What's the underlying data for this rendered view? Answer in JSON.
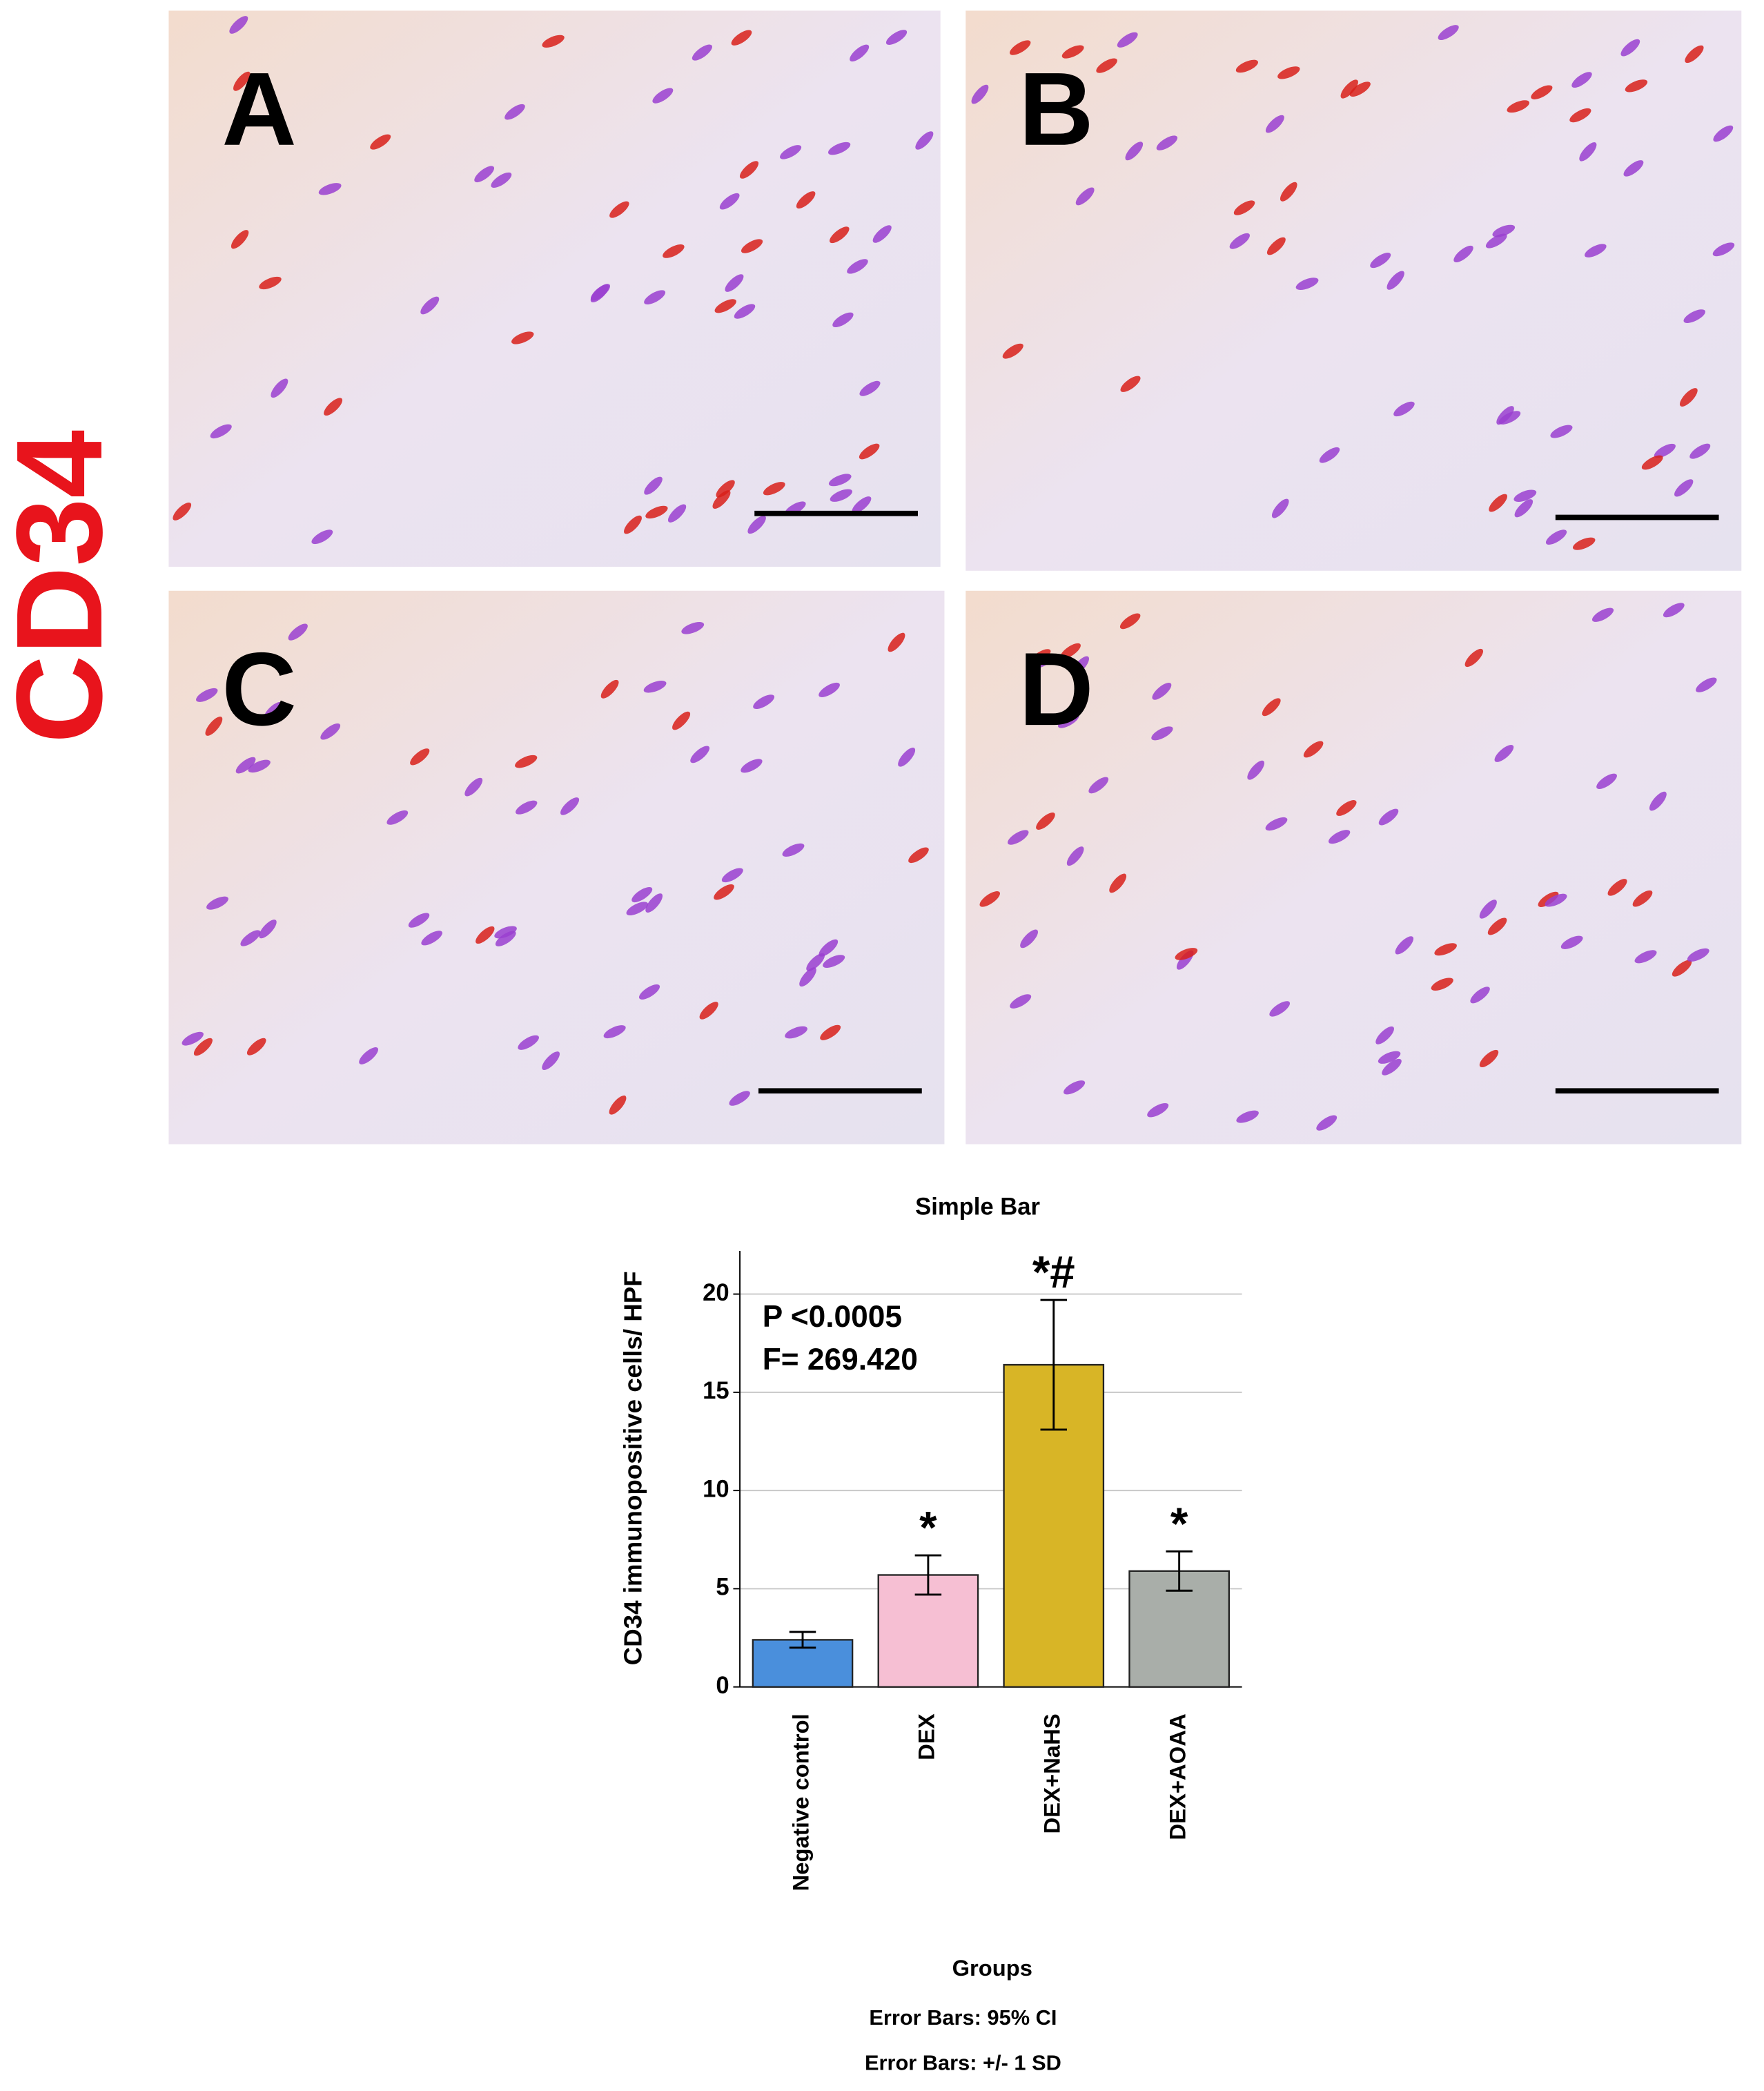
{
  "side_label": "CD34",
  "panels": [
    "A",
    "B",
    "C",
    "D"
  ],
  "chart_data": {
    "type": "bar",
    "title": "Simple Bar",
    "x_label": "Groups",
    "y_label": "CD34 immunopositive cells/ HPF",
    "categories": [
      "Negative control",
      "DEX",
      "DEX+NaHS",
      "DEX+AOAA"
    ],
    "values": [
      2.4,
      5.7,
      16.4,
      5.9
    ],
    "errors": [
      0.4,
      1.0,
      3.3,
      1.0
    ],
    "significance": [
      null,
      "*",
      "*#",
      "*"
    ],
    "colors": [
      "#4a8fdc",
      "#f6bfd3",
      "#d8b526",
      "#a9aea9"
    ],
    "ylim": [
      0,
      22.2
    ],
    "yticks": [
      0,
      5,
      10,
      15,
      20
    ],
    "grid": true,
    "annotations": [
      "P <0.0005",
      "F= 269.420"
    ],
    "notes": [
      "Error Bars: 95% CI",
      "Error Bars: +/- 1 SD"
    ]
  }
}
